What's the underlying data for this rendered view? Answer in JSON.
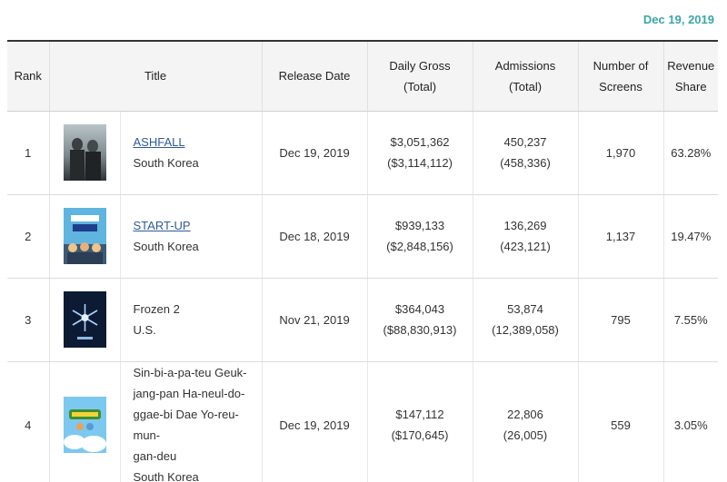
{
  "date_label": "Dec 19, 2019",
  "columns": {
    "rank": "Rank",
    "title": "Title",
    "release_date": "Release Date",
    "daily_gross_1": "Daily Gross",
    "daily_gross_2": "(Total)",
    "admissions_1": "Admissions",
    "admissions_2": "(Total)",
    "screens_1": "Number of",
    "screens_2": "Screens",
    "share_1": "Revenue",
    "share_2": "Share"
  },
  "rows": [
    {
      "rank": "1",
      "title": "ASHFALL",
      "is_link": true,
      "country": "South Korea",
      "release_date": "Dec 19, 2019",
      "daily_gross": "$3,051,362",
      "total_gross": "($3,114,112)",
      "admissions": "450,237",
      "total_admissions": "(458,336)",
      "screens": "1,970",
      "share": "63.28%"
    },
    {
      "rank": "2",
      "title": "START-UP",
      "is_link": true,
      "country": "South Korea",
      "release_date": "Dec 18, 2019",
      "daily_gross": "$939,133",
      "total_gross": "($2,848,156)",
      "admissions": "136,269",
      "total_admissions": "(423,121)",
      "screens": "1,137",
      "share": "19.47%"
    },
    {
      "rank": "3",
      "title": "Frozen 2",
      "is_link": false,
      "country": "U.S.",
      "release_date": "Nov 21, 2019",
      "daily_gross": "$364,043",
      "total_gross": "($88,830,913)",
      "admissions": "53,874",
      "total_admissions": "(12,389,058)",
      "screens": "795",
      "share": "7.55%"
    },
    {
      "rank": "4",
      "title_lines": [
        "Sin-bi-a-pa-teu Geuk-",
        "jang-pan Ha-neul-do-",
        "ggae-bi Dae Yo-reu-mun-",
        "gan-deu"
      ],
      "is_link": false,
      "country": "South Korea",
      "release_date": "Dec 19, 2019",
      "daily_gross": "$147,112",
      "total_gross": "($170,645)",
      "admissions": "22,806",
      "total_admissions": "(26,005)",
      "screens": "559",
      "share": "3.05%"
    }
  ]
}
